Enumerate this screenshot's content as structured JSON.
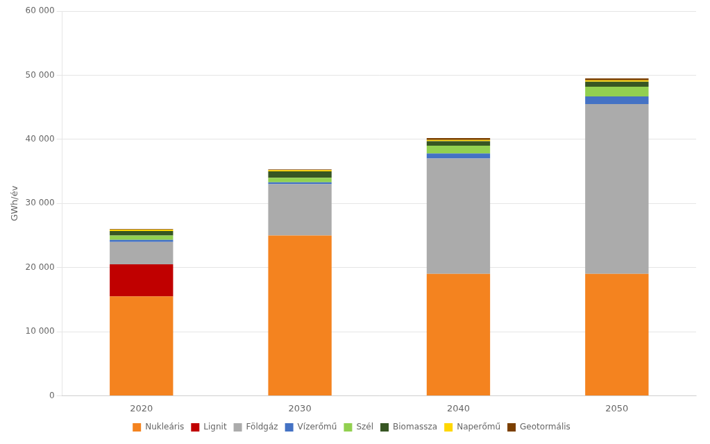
{
  "chart_data": {
    "type": "bar",
    "stacked": true,
    "categories": [
      "2020",
      "2030",
      "2040",
      "2050"
    ],
    "series": [
      {
        "name": "Nukleáris",
        "color": "#F4831F",
        "values": [
          15500,
          25000,
          19000,
          19000
        ]
      },
      {
        "name": "Lignit",
        "color": "#C00000",
        "values": [
          5000,
          0,
          0,
          0
        ]
      },
      {
        "name": "Földgáz",
        "color": "#ABABAB",
        "values": [
          3500,
          8000,
          18000,
          26500
        ]
      },
      {
        "name": "Vízerőmű",
        "color": "#4472C4",
        "values": [
          300,
          300,
          800,
          1200
        ]
      },
      {
        "name": "Szél",
        "color": "#92D050",
        "values": [
          700,
          700,
          1200,
          1500
        ]
      },
      {
        "name": "Biomassza",
        "color": "#375623",
        "values": [
          700,
          1000,
          700,
          800
        ]
      },
      {
        "name": "Naperőmű",
        "color": "#FFD700",
        "values": [
          200,
          200,
          200,
          200
        ]
      },
      {
        "name": "Geotormális",
        "color": "#7B3F00",
        "values": [
          100,
          100,
          300,
          300
        ]
      }
    ],
    "ylabel": "GWh/év",
    "ylim": [
      0,
      60000
    ],
    "yticks": [
      0,
      {
        "value": 10000,
        "label": "10 000"
      },
      {
        "value": 20000,
        "label": "20 000"
      },
      {
        "value": 30000,
        "label": "30 000"
      },
      {
        "value": 40000,
        "label": "40 000"
      },
      {
        "value": 50000,
        "label": "50 000"
      },
      {
        "value": 60000,
        "label": "60 000"
      }
    ],
    "grid": true,
    "legend": "bottom"
  }
}
